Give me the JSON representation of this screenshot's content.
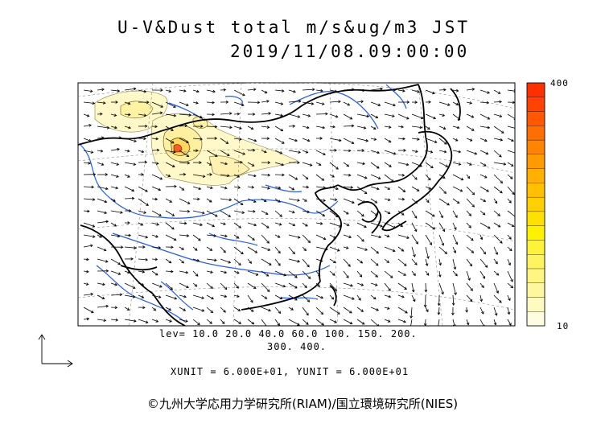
{
  "title_line1": "U-V&Dust total m/s&ug/m3 JST",
  "title_line2": "2019/11/08.09:00:00",
  "colorbar": {
    "max_label": "400",
    "min_label": "10",
    "colors": [
      "#fffde0",
      "#fffac0",
      "#fff7a0",
      "#fff580",
      "#fff460",
      "#fff33a",
      "#fff200",
      "#ffe100",
      "#ffd000",
      "#ffc000",
      "#ffb000",
      "#ff9a00",
      "#ff8400",
      "#ff6e00",
      "#ff5800",
      "#ff4200",
      "#ff3000"
    ]
  },
  "levels": {
    "line1": "lev= 10.0 20.0 40.0 60.0 100. 150. 200.",
    "line2": "300. 400."
  },
  "units_text": "XUNIT = 6.000E+01, YUNIT = 6.000E+01",
  "copyright": "©九州大学応用力学研究所(RIAM)/国立環境研究所(NIES)"
}
